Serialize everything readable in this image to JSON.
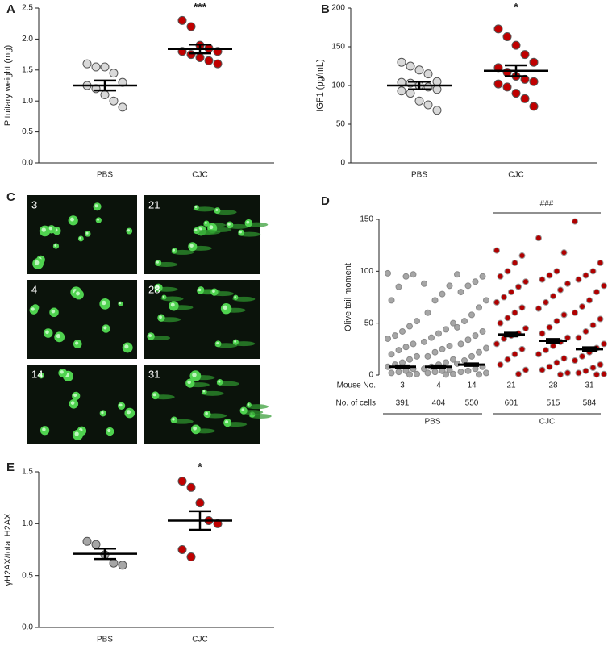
{
  "panel_labels": [
    "A",
    "B",
    "C",
    "D",
    "E"
  ],
  "micrographs": [
    "3",
    "21",
    "4",
    "28",
    "14",
    "31"
  ],
  "chart_data": [
    {
      "type": "dot",
      "ylabel": "Pituitary weight (mg)",
      "categories": [
        "PBS",
        "CJC"
      ],
      "annotation": "***",
      "ylim": [
        0,
        2.5
      ],
      "yticks": [
        {
          "value": 0,
          "label": "0.0"
        },
        0.5,
        {
          "value": 1,
          "label": "1.0"
        },
        1.5,
        {
          "value": 2,
          "label": "2.0"
        },
        2.5
      ],
      "groups": [
        {
          "color": "#d9d9d9",
          "edge_color": "#555555",
          "values": [
            1.6,
            1.55,
            1.55,
            1.45,
            1.3,
            1.25,
            1.2,
            1.1,
            1.0,
            0.9
          ],
          "mean": 1.25,
          "sem": 0.08
        },
        {
          "color": "#c00000",
          "edge_color": "#555555",
          "values": [
            2.3,
            2.2,
            1.9,
            1.85,
            1.8,
            1.8,
            1.75,
            1.7,
            1.65,
            1.6
          ],
          "mean": 1.84,
          "sem": 0.07
        }
      ]
    },
    {
      "type": "dot",
      "ylabel": "IGF1 (pg/mL)",
      "categories": [
        "PBS",
        "CJC"
      ],
      "annotation": "*",
      "ylim": [
        0,
        200
      ],
      "yticks": [
        0,
        50,
        100,
        150,
        200
      ],
      "groups": [
        {
          "color": "#d9d9d9",
          "edge_color": "#555555",
          "values": [
            130,
            125,
            120,
            115,
            105,
            104,
            103,
            100,
            98,
            95,
            93,
            90,
            80,
            75,
            68
          ],
          "mean": 100,
          "sem": 5
        },
        {
          "color": "#c00000",
          "edge_color": "#555555",
          "values": [
            173,
            163,
            152,
            140,
            130,
            123,
            117,
            112,
            108,
            105,
            102,
            98,
            90,
            83,
            73
          ],
          "mean": 119,
          "sem": 7
        }
      ]
    },
    {
      "type": "swarm",
      "ylabel": "Olive tail moment",
      "categories": [
        "3",
        "4",
        "14",
        "21",
        "28",
        "31"
      ],
      "annotation": "###",
      "row_labels": [
        "Mouse No.",
        "No. of cells"
      ],
      "cell_counts": [
        391,
        404,
        550,
        601,
        515,
        584
      ],
      "group_labels": [
        "PBS",
        "CJC"
      ],
      "ylim": [
        0,
        150
      ],
      "yticks": [
        0,
        50,
        100,
        150
      ],
      "groups": [
        {
          "color": "#a6a6a6",
          "edge_color": "#8a8a8a",
          "values": [
            98,
            97,
            95,
            85,
            72,
            52,
            47,
            42,
            38,
            35,
            30,
            27,
            24,
            20,
            18,
            15,
            12,
            10,
            8,
            6,
            4,
            3,
            2,
            1,
            0.5
          ],
          "mean": 8,
          "sem": 1
        },
        {
          "color": "#a6a6a6",
          "edge_color": "#8a8a8a",
          "values": [
            88,
            86,
            78,
            72,
            60,
            50,
            44,
            40,
            36,
            32,
            28,
            25,
            22,
            18,
            15,
            12,
            10,
            8,
            6,
            5,
            4,
            3,
            2,
            1,
            0.5
          ],
          "mean": 8,
          "sem": 1
        },
        {
          "color": "#a6a6a6",
          "edge_color": "#8a8a8a",
          "values": [
            97,
            95,
            90,
            86,
            80,
            72,
            65,
            58,
            52,
            46,
            42,
            38,
            34,
            30,
            26,
            22,
            18,
            14,
            11,
            8,
            6,
            4,
            3,
            2,
            0.5
          ],
          "mean": 10,
          "sem": 1
        },
        {
          "color": "#b00000",
          "edge_color": "#999999",
          "values": [
            120,
            115,
            108,
            100,
            95,
            90,
            85,
            80,
            75,
            70,
            65,
            60,
            55,
            50,
            45,
            40,
            38,
            35,
            30,
            25,
            20,
            15,
            10,
            5,
            1
          ],
          "mean": 39,
          "sem": 1.5
        },
        {
          "color": "#b00000",
          "edge_color": "#999999",
          "values": [
            132,
            118,
            100,
            96,
            92,
            88,
            82,
            76,
            70,
            64,
            58,
            52,
            46,
            40,
            36,
            32,
            28,
            24,
            20,
            16,
            12,
            8,
            5,
            2,
            0.5
          ],
          "mean": 33,
          "sem": 1.5
        },
        {
          "color": "#b00000",
          "edge_color": "#999999",
          "values": [
            148,
            108,
            100,
            96,
            92,
            86,
            80,
            72,
            66,
            60,
            54,
            48,
            42,
            36,
            30,
            26,
            22,
            18,
            14,
            10,
            7,
            4,
            2,
            1,
            0.5
          ],
          "mean": 25,
          "sem": 1.5
        }
      ]
    },
    {
      "type": "dot",
      "ylabel": "γH2AX/total H2AX",
      "categories": [
        "PBS",
        "CJC"
      ],
      "annotation": "*",
      "ylim": [
        0,
        1.5
      ],
      "yticks": [
        {
          "value": 0,
          "label": "0.0"
        },
        0.5,
        {
          "value": 1,
          "label": "1.0"
        },
        1.5
      ],
      "groups": [
        {
          "color": "#a6a6a6",
          "edge_color": "#555555",
          "values": [
            0.83,
            0.8,
            0.7,
            0.62,
            0.6
          ],
          "mean": 0.71,
          "sem": 0.05
        },
        {
          "color": "#c00000",
          "edge_color": "#555555",
          "values": [
            1.41,
            1.35,
            1.2,
            1.03,
            1.0,
            0.75,
            0.68
          ],
          "mean": 1.03,
          "sem": 0.09
        }
      ]
    }
  ]
}
